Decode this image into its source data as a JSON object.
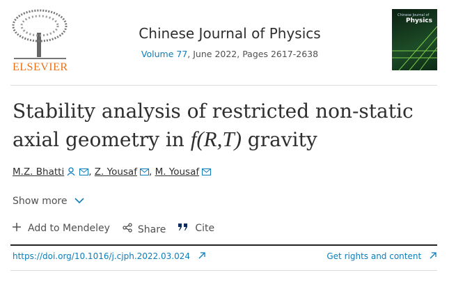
{
  "header": {
    "publisher": "ELSEVIER",
    "journal": "Chinese Journal of Physics",
    "volume": "Volume 77",
    "issue_details": ", June 2022, Pages 2617-2638",
    "cover_title": "Chinese Journal of",
    "cover_subtitle": "Physics"
  },
  "article": {
    "title_before": "Stability analysis of restricted non-static axial geometry in ",
    "title_math": "f(R,T)",
    "title_after": " gravity",
    "authors": [
      "M.Z. Bhatti",
      "Z. Yousaf",
      "M. Yousaf"
    ],
    "show_more": "Show more",
    "actions": [
      "Add to Mendeley",
      "Share",
      "Cite"
    ],
    "doi": "https://doi.org/10.1016/j.cjph.2022.03.024",
    "rights": "Get rights and content"
  }
}
